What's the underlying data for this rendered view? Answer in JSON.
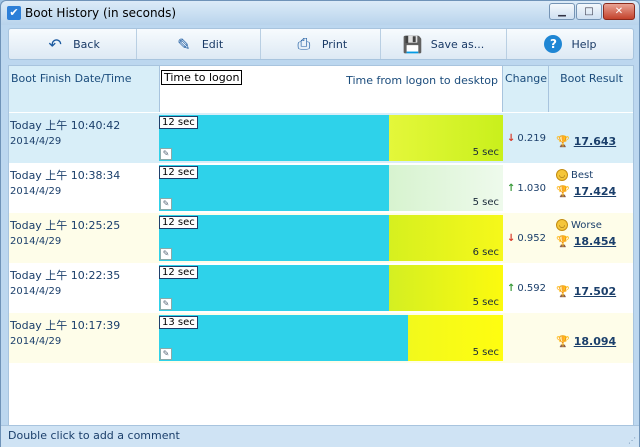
{
  "window": {
    "title": "Boot History (in seconds)"
  },
  "toolbar": [
    {
      "label": "Back",
      "icon": "back-arrow-icon",
      "glyph": "↶"
    },
    {
      "label": "Edit",
      "icon": "edit-icon",
      "glyph": "✎"
    },
    {
      "label": "Print",
      "icon": "printer-icon",
      "glyph": "⎙"
    },
    {
      "label": "Save as...",
      "icon": "floppy-disk-icon",
      "glyph": "💾"
    },
    {
      "label": "Help",
      "icon": "help-icon",
      "glyph": "?"
    }
  ],
  "headers": {
    "date": "Boot Finish Date/Time",
    "time_to_logon": "Time to logon",
    "time_logon_desktop": "Time from logon to desktop",
    "change": "Change",
    "result": "Boot Result"
  },
  "rows": [
    {
      "time": "Today  上午 10:40:42",
      "date": "2014/4/29",
      "logon_label": "12 sec",
      "logon_value": 12,
      "desktop_label": "5 sec",
      "desktop_value": 5,
      "change_dir": "down",
      "change": "0.219",
      "badge": "",
      "result": "17.643",
      "bg": "#d8eef8",
      "desk_color_a": "#e4f73a",
      "desk_color_b": "#c9f01c"
    },
    {
      "time": "Today  上午 10:38:34",
      "date": "2014/4/29",
      "logon_label": "12 sec",
      "logon_value": 12,
      "desktop_label": "5 sec",
      "desktop_value": 5,
      "change_dir": "up",
      "change": "1.030",
      "badge": "Best",
      "result": "17.424",
      "bg": "#ffffff",
      "desk_color_a": "#d7f3cf",
      "desk_color_b": "#eefaec"
    },
    {
      "time": "Today  上午 10:25:25",
      "date": "2014/4/29",
      "logon_label": "12 sec",
      "logon_value": 12,
      "desktop_label": "6 sec",
      "desktop_value": 6,
      "change_dir": "down",
      "change": "0.952",
      "badge": "Worse",
      "result": "18.454",
      "bg": "#fefde9",
      "desk_color_a": "#d6f01f",
      "desk_color_b": "#f6f81a"
    },
    {
      "time": "Today  上午 10:22:35",
      "date": "2014/4/29",
      "logon_label": "12 sec",
      "logon_value": 12,
      "desktop_label": "5 sec",
      "desktop_value": 5,
      "change_dir": "up",
      "change": "0.592",
      "badge": "",
      "result": "17.502",
      "bg": "#ffffff",
      "desk_color_a": "#d4ef22",
      "desk_color_b": "#fcfa0e"
    },
    {
      "time": "Today  上午 10:17:39",
      "date": "2014/4/29",
      "logon_label": "13 sec",
      "logon_value": 13,
      "desktop_label": "5 sec",
      "desktop_value": 5,
      "change_dir": "",
      "change": "",
      "badge": "",
      "result": "18.094",
      "bg": "#fefde9",
      "desk_color_a": "#f2f91c",
      "desk_color_b": "#fffd10"
    }
  ],
  "status": "Double click to add a comment"
}
